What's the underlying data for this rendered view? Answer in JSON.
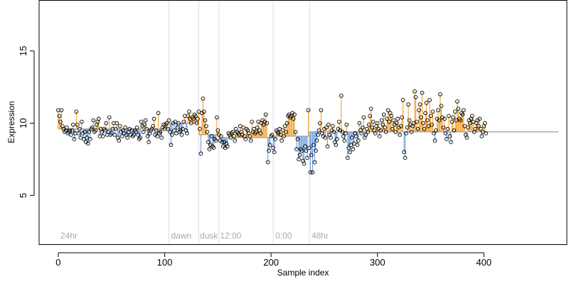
{
  "chart_data": {
    "type": "scatter",
    "xlabel": "Sample index",
    "ylabel": "Expression",
    "xlim": [
      -18,
      478
    ],
    "ylim": [
      1.6,
      18.5
    ],
    "x_ticks": [
      0,
      100,
      200,
      300,
      400
    ],
    "y_ticks": [
      5,
      10,
      15
    ],
    "grid": false,
    "colors": {
      "above": "#f0a030",
      "below": "#6f9fd8",
      "points": "#000000",
      "separators": "#dddddd"
    },
    "segment_boundaries": [
      104,
      132,
      151,
      202,
      236
    ],
    "segment_labels": [
      {
        "label": "24hr",
        "x": 2
      },
      {
        "label": "dawn",
        "x": 106
      },
      {
        "label": "dusk",
        "x": 133
      },
      {
        "label": "12:00",
        "x": 152
      },
      {
        "label": "0:00",
        "x": 204
      },
      {
        "label": "48hr",
        "x": 238
      }
    ],
    "segment_baselines": [
      {
        "from": 0,
        "to": 104,
        "value": 9.6
      },
      {
        "from": 104,
        "to": 132,
        "value": 10.0
      },
      {
        "from": 132,
        "to": 151,
        "value": 9.2
      },
      {
        "from": 151,
        "to": 202,
        "value": 9.0
      },
      {
        "from": 202,
        "to": 236,
        "value": 9.1
      },
      {
        "from": 236,
        "to": 470,
        "value": 9.4
      }
    ],
    "values": [
      10.9,
      10.5,
      10.1,
      10.9,
      9.8,
      9.6,
      9.4,
      9.5,
      9.7,
      9.3,
      9.4,
      9.5,
      9.2,
      9.5,
      9.9,
      8.9,
      9.3,
      10.8,
      9.9,
      9.3,
      9.6,
      9.0,
      10.1,
      9.3,
      8.9,
      9.4,
      8.7,
      9.0,
      8.6,
      9.4,
      8.9,
      9.6,
      9.7,
      10.2,
      9.4,
      9.5,
      9.9,
      10.1,
      10.3,
      9.1,
      9.6,
      9.4,
      9.1,
      9.6,
      9.5,
      10.0,
      9.2,
      9.4,
      10.4,
      9.2,
      9.3,
      9.6,
      10.0,
      9.2,
      9.6,
      10.0,
      9.0,
      8.8,
      9.8,
      9.4,
      9.1,
      9.5,
      9.3,
      9.7,
      9.2,
      9.0,
      9.4,
      9.6,
      9.2,
      9.5,
      9.1,
      9.2,
      9.5,
      9.4,
      9.7,
      9.2,
      8.9,
      9.0,
      10.1,
      9.8,
      9.4,
      9.9,
      10.2,
      9.6,
      9.1,
      8.7,
      9.3,
      9.5,
      9.6,
      9.8,
      10.3,
      9.2,
      9.5,
      9.1,
      10.7,
      9.3,
      9.4,
      9.0,
      9.7,
      9.9,
      9.6,
      9.9,
      10.0,
      9.6,
      10.2,
      9.4,
      8.5,
      9.2,
      10.0,
      9.5,
      10.1,
      9.3,
      9.7,
      10.0,
      9.4,
      9.5,
      9.2,
      9.6,
      10.1,
      10.5,
      9.5,
      9.3,
      10.5,
      10.8,
      10.3,
      10.0,
      10.4,
      10.3,
      10.6,
      10.5,
      10.0,
      10.3,
      10.8,
      9.6,
      7.9,
      10.7,
      11.7,
      10.8,
      10.2,
      9.8,
      9.4,
      8.7,
      8.2,
      8.5,
      9.1,
      8.4,
      8.3,
      8.9,
      8.8,
      10.4,
      9.5,
      9.2,
      8.8,
      9.1,
      8.7,
      8.4,
      8.7,
      8.3,
      8.6,
      8.4,
      9.3,
      9.2,
      9.0,
      9.3,
      9.4,
      9.1,
      8.8,
      9.6,
      9.4,
      9.3,
      9.2,
      9.8,
      9.4,
      9.2,
      9.7,
      9.1,
      8.9,
      9.6,
      9.5,
      9.3,
      9.1,
      8.8,
      10.1,
      9.4,
      9.6,
      9.3,
      9.4,
      9.7,
      10.1,
      9.5,
      9.3,
      10.0,
      10.2,
      9.9,
      10.1,
      10.6,
      10.0,
      7.3,
      8.1,
      8.5,
      9.1,
      9.2,
      8.3,
      8.0,
      8.9,
      9.5,
      9.4,
      9.3,
      9.6,
      9.2,
      8.8,
      9.5,
      9.1,
      9.8,
      9.4,
      10.0,
      10.5,
      10.6,
      10.4,
      10.5,
      10.7,
      10.3,
      10.6,
      9.4,
      8.2,
      8.9,
      7.5,
      7.8,
      8.2,
      8.1,
      7.4,
      7.2,
      8.4,
      8.1,
      7.6,
      10.9,
      8.3,
      6.6,
      7.8,
      6.6,
      8.5,
      7.3,
      8.1,
      8.8,
      9.2,
      9.5,
      10.0,
      10.9,
      9.3,
      9.1,
      9.6,
      9.0,
      9.7,
      8.4,
      9.9,
      9.2,
      9.0,
      9.5,
      9.8,
      9.4,
      8.7,
      8.5,
      8.9,
      9.6,
      10.1,
      9.5,
      11.9,
      9.4,
      9.1,
      8.8,
      9.3,
      9.9,
      7.6,
      8.3,
      8.0,
      8.5,
      9.0,
      8.2,
      8.6,
      9.3,
      9.1,
      8.5,
      8.8,
      10.0,
      9.5,
      9.3,
      9.7,
      10.4,
      9.0,
      9.2,
      9.6,
      9.4,
      9.9,
      10.5,
      11.0,
      9.7,
      10.1,
      9.5,
      9.3,
      9.8,
      10.0,
      9.6,
      9.1,
      9.5,
      10.2,
      9.9,
      10.6,
      9.7,
      9.4,
      10.3,
      10.9,
      10.1,
      10.7,
      10.5,
      9.6,
      10.2,
      9.9,
      9.4,
      10.0,
      10.3,
      9.7,
      9.2,
      9.8,
      10.4,
      11.6,
      8.0,
      7.6,
      9.3,
      9.7,
      11.3,
      10.2,
      9.9,
      9.4,
      9.8,
      10.0,
      12.2,
      11.8,
      10.1,
      9.6,
      10.9,
      11.3,
      10.4,
      12.1,
      10.0,
      9.6,
      10.7,
      11.4,
      10.2,
      9.8,
      11.6,
      10.5,
      9.9,
      10.8,
      9.3,
      8.8,
      9.5,
      10.3,
      10.9,
      10.2,
      12.0,
      11.2,
      10.4,
      9.7,
      10.3,
      9.3,
      8.9,
      9.6,
      10.5,
      9.1,
      8.7,
      10.1,
      10.4,
      9.5,
      10.8,
      10.2,
      11.5,
      11.0,
      10.3,
      10.2,
      10.7,
      10.6,
      10.9,
      9.8,
      9.2,
      9.0,
      9.7,
      10.2,
      10.0,
      10.3,
      10.5,
      10.1,
      9.4,
      9.6,
      10.0,
      10.2,
      9.8,
      10.3,
      9.6,
      9.1,
      9.4,
      9.8,
      10.0,
      9.3
    ]
  }
}
